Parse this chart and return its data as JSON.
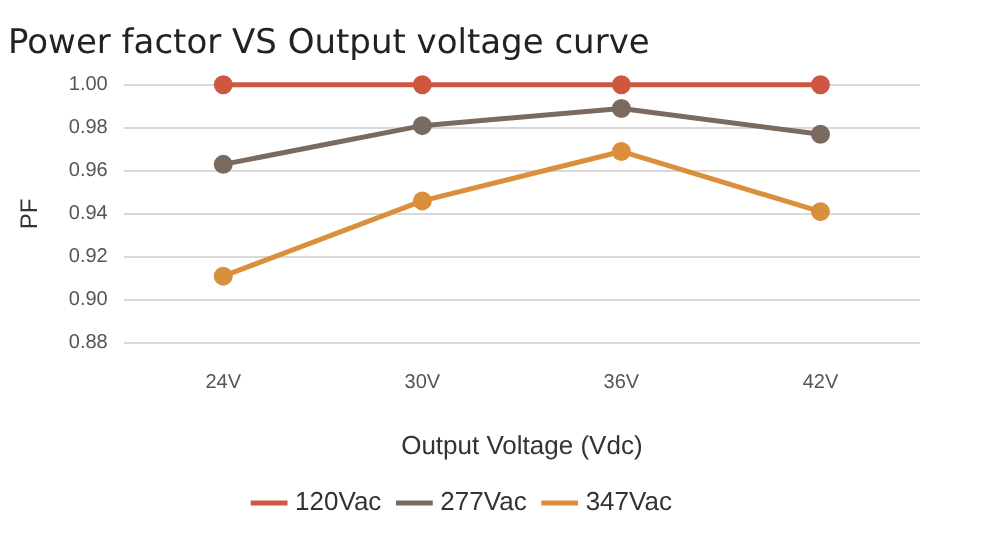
{
  "chart_data": {
    "type": "line",
    "title": "Power factor VS Output voltage curve",
    "xlabel": "Output Voltage (Vdc)",
    "ylabel": "PF",
    "categories": [
      "24V",
      "30V",
      "36V",
      "42V"
    ],
    "series": [
      {
        "name": "120Vac",
        "color": "#cf5640",
        "values": [
          1.0,
          1.0,
          1.0,
          1.0
        ]
      },
      {
        "name": "277Vac",
        "color": "#7b6a5f",
        "values": [
          0.963,
          0.981,
          0.989,
          0.977
        ]
      },
      {
        "name": "347Vac",
        "color": "#d98f3c",
        "values": [
          0.911,
          0.946,
          0.969,
          0.941
        ]
      }
    ],
    "ylim": [
      0.88,
      1.0
    ],
    "yticks": [
      0.88,
      {
        "value": 0.9,
        "label": "0.90"
      },
      0.92,
      0.94,
      0.96,
      0.98,
      {
        "value": 1.0,
        "label": "1.00"
      }
    ],
    "grid": "y",
    "legend": "bottom",
    "marker": "circle",
    "line_style": "solid"
  }
}
